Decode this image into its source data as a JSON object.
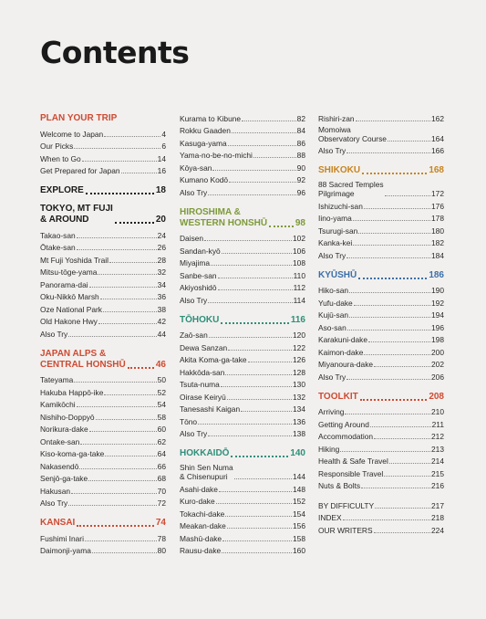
{
  "page_title": "Contents",
  "col1": [
    {
      "cls": "s-plan",
      "heading": "PLAN YOUR TRIP",
      "page": "",
      "items": [
        {
          "label": "Welcome to Japan",
          "page": "4"
        },
        {
          "label": "Our Picks",
          "page": "6"
        },
        {
          "label": "When to Go",
          "page": "14"
        },
        {
          "label": "Get Prepared for Japan",
          "page": "16"
        }
      ]
    },
    {
      "cls": "s-explore",
      "heading": "EXPLORE",
      "page": "18",
      "items": []
    },
    {
      "cls": "s-tokyo",
      "heading": "TOKYO, MT FUJI\n& AROUND",
      "page": "20",
      "items": [
        {
          "label": "Takao-san",
          "page": "24"
        },
        {
          "label": "Ōtake-san",
          "page": "26"
        },
        {
          "label": "Mt Fuji Yoshida Trail",
          "page": "28"
        },
        {
          "label": "Mitsu-tōge-yama",
          "page": "32"
        },
        {
          "label": "Panorama-dai",
          "page": "34"
        },
        {
          "label": "Oku-Nikkō Marsh",
          "page": "36"
        },
        {
          "label": "Oze National Park",
          "page": "38"
        },
        {
          "label": "Old Hakone Hwy",
          "page": "42"
        },
        {
          "label": "Also Try",
          "page": "44"
        }
      ]
    },
    {
      "cls": "s-alps",
      "heading": "JAPAN ALPS &\nCENTRAL HONSHŪ",
      "page": "46",
      "items": [
        {
          "label": "Tateyama",
          "page": "50"
        },
        {
          "label": "Hakuba Happō-ike",
          "page": "52"
        },
        {
          "label": "Kamikōchi",
          "page": "54"
        },
        {
          "label": "Nishiho-Doppyō",
          "page": "58"
        },
        {
          "label": "Norikura-dake",
          "page": "60"
        },
        {
          "label": "Ontake-san",
          "page": "62"
        },
        {
          "label": "Kiso-koma-ga-take",
          "page": "64"
        },
        {
          "label": "Nakasendō",
          "page": "66"
        },
        {
          "label": "Senjō-ga-take",
          "page": "68"
        },
        {
          "label": "Hakusan",
          "page": "70"
        },
        {
          "label": "Also Try",
          "page": "72"
        }
      ]
    },
    {
      "cls": "s-kansai",
      "heading": "KANSAI",
      "page": "74",
      "items": [
        {
          "label": "Fushimi Inari",
          "page": "78"
        },
        {
          "label": "Daimonji-yama",
          "page": "80"
        }
      ]
    }
  ],
  "col2": [
    {
      "cls": "s-kansai-cont",
      "heading": "",
      "page": "",
      "items": [
        {
          "label": "Kurama to Kibune",
          "page": "82"
        },
        {
          "label": "Rokku Gaaden",
          "page": "84"
        },
        {
          "label": "Kasuga-yama",
          "page": "86"
        },
        {
          "label": "Yama-no-be-no-michi",
          "page": "88"
        },
        {
          "label": "Kōya-san",
          "page": "90"
        },
        {
          "label": "Kumano Kodō",
          "page": "92"
        },
        {
          "label": "Also Try",
          "page": "96"
        }
      ]
    },
    {
      "cls": "s-hiro",
      "heading": "HIROSHIMA &\nWESTERN HONSHŪ",
      "page": "98",
      "items": [
        {
          "label": "Daisen",
          "page": "102"
        },
        {
          "label": "Sandan-kyō",
          "page": "106"
        },
        {
          "label": "Miyajima",
          "page": "108"
        },
        {
          "label": "Sanbe-san",
          "page": "110"
        },
        {
          "label": "Akiyoshidō",
          "page": "112"
        },
        {
          "label": "Also Try",
          "page": "114"
        }
      ]
    },
    {
      "cls": "s-toho",
      "heading": "TŌHOKU",
      "page": "116",
      "items": [
        {
          "label": "Zaō-san",
          "page": "120"
        },
        {
          "label": "Dewa Sanzan",
          "page": "122"
        },
        {
          "label": "Akita Koma-ga-take",
          "page": "126"
        },
        {
          "label": "Hakkōda-san",
          "page": "128"
        },
        {
          "label": "Tsuta-numa",
          "page": "130"
        },
        {
          "label": "Oirase Keiryū",
          "page": "132"
        },
        {
          "label": "Tanesashi Kaigan",
          "page": "134"
        },
        {
          "label": "Tōno",
          "page": "136"
        },
        {
          "label": "Also Try",
          "page": "138"
        }
      ]
    },
    {
      "cls": "s-hokk",
      "heading": "HOKKAIDŌ",
      "page": "140",
      "items": [
        {
          "label": "Shin Sen Numa\n& Chisenupuri",
          "page": "144"
        },
        {
          "label": "Asahi-dake",
          "page": "148"
        },
        {
          "label": "Kuro-dake",
          "page": "152"
        },
        {
          "label": "Tokachi-dake",
          "page": "154"
        },
        {
          "label": "Meakan-dake",
          "page": "156"
        },
        {
          "label": "Mashū-dake",
          "page": "158"
        },
        {
          "label": "Rausu-dake",
          "page": "160"
        }
      ]
    }
  ],
  "col3": [
    {
      "cls": "s-hokk-cont",
      "heading": "",
      "page": "",
      "items": [
        {
          "label": "Rishiri-zan",
          "page": "162"
        },
        {
          "label": "Momoiwa\nObservatory Course",
          "page": "164"
        },
        {
          "label": "Also Try",
          "page": "166"
        }
      ]
    },
    {
      "cls": "s-shik",
      "heading": "SHIKOKU",
      "page": "168",
      "items": [
        {
          "label": "88 Sacred Temples\nPilgrimage",
          "page": "172"
        },
        {
          "label": "Ishizuchi-san",
          "page": "176"
        },
        {
          "label": "Iino-yama",
          "page": "178"
        },
        {
          "label": "Tsurugi-san",
          "page": "180"
        },
        {
          "label": "Kanka-kei",
          "page": "182"
        },
        {
          "label": "Also Try",
          "page": "184"
        }
      ]
    },
    {
      "cls": "s-kyu",
      "heading": "KYŪSHŪ",
      "page": "186",
      "items": [
        {
          "label": "Hiko-san",
          "page": "190"
        },
        {
          "label": "Yufu-dake",
          "page": "192"
        },
        {
          "label": "Kujū-san",
          "page": "194"
        },
        {
          "label": "Aso-san",
          "page": "196"
        },
        {
          "label": "Karakuni-dake",
          "page": "198"
        },
        {
          "label": "Kaimon-dake",
          "page": "200"
        },
        {
          "label": "Miyanoura-dake",
          "page": "202"
        },
        {
          "label": "Also Try",
          "page": "206"
        }
      ]
    },
    {
      "cls": "s-tool",
      "heading": "TOOLKIT",
      "page": "208",
      "items": [
        {
          "label": "Arriving",
          "page": "210"
        },
        {
          "label": "Getting Around",
          "page": "211"
        },
        {
          "label": "Accommodation",
          "page": "212"
        },
        {
          "label": "Hiking",
          "page": "213"
        },
        {
          "label": "Health & Safe Travel",
          "page": "214"
        },
        {
          "label": "Responsible Travel",
          "page": "215"
        },
        {
          "label": "Nuts & Bolts",
          "page": "216"
        }
      ]
    },
    {
      "cls": "s-back",
      "heading": "",
      "page": "",
      "items": [
        {
          "label": "BY DIFFICULTY",
          "page": "217"
        },
        {
          "label": "INDEX",
          "page": "218"
        },
        {
          "label": "OUR WRITERS",
          "page": "224"
        }
      ]
    }
  ]
}
